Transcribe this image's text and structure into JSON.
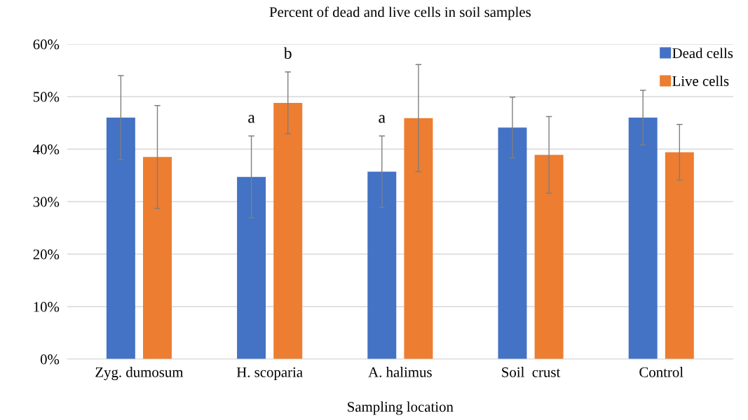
{
  "chart_data": {
    "type": "bar",
    "title": "Percent of dead and live cells in soil samples",
    "xlabel": "Sampling location",
    "categories": [
      "Zyg. dumosum",
      "H. scoparia",
      "A. halimus",
      "Soil  crust",
      "Control"
    ],
    "series": [
      {
        "name": "Dead cells",
        "color": "#4472c4",
        "values": [
          46,
          34.7,
          35.7,
          44.1,
          46.0
        ],
        "errors": [
          8,
          7.8,
          6.8,
          5.8,
          5.2
        ]
      },
      {
        "name": "Live cells",
        "color": "#ed7d31",
        "values": [
          38.5,
          48.8,
          45.9,
          38.9,
          39.4
        ],
        "errors": [
          9.8,
          5.9,
          10.2,
          7.3,
          5.3
        ]
      }
    ],
    "ylim": [
      0,
      60
    ],
    "yticks": [
      {
        "value": 0,
        "label": "0%"
      },
      {
        "value": 10,
        "label": "10%"
      },
      {
        "value": 20,
        "label": "20%"
      },
      {
        "value": 30,
        "label": "30%"
      },
      {
        "value": 40,
        "label": "40%"
      },
      {
        "value": 50,
        "label": "50%"
      },
      {
        "value": 60,
        "label": "60%"
      }
    ],
    "annotations": [
      "a",
      "b",
      "a"
    ],
    "grid": "y",
    "legend": "top right"
  }
}
